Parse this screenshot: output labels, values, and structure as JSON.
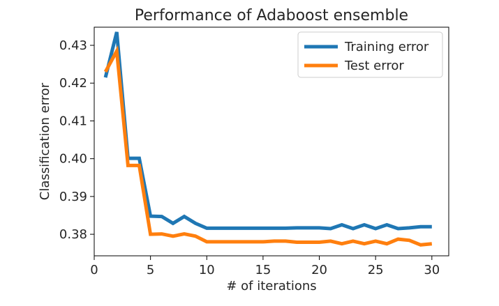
{
  "chart_data": {
    "type": "line",
    "title": "Performance of Adaboost ensemble",
    "xlabel": "# of iterations",
    "ylabel": "Classification error",
    "xlim": [
      0,
      31.5
    ],
    "ylim": [
      0.3743,
      0.4348
    ],
    "xticks": [
      "0",
      "5",
      "10",
      "15",
      "20",
      "25",
      "30"
    ],
    "yticks": [
      "0.38",
      "0.39",
      "0.40",
      "0.41",
      "0.42",
      "0.43"
    ],
    "grid": false,
    "legend_position": "top-right",
    "x": [
      1,
      2,
      3,
      4,
      5,
      6,
      7,
      8,
      9,
      10,
      11,
      12,
      13,
      14,
      15,
      16,
      17,
      18,
      19,
      20,
      21,
      22,
      23,
      24,
      25,
      26,
      27,
      28,
      29,
      30
    ],
    "series": [
      {
        "name": "Training error",
        "color": "#1f77b4",
        "values": [
          0.4215,
          0.4335,
          0.4001,
          0.4001,
          0.3848,
          0.3847,
          0.3829,
          0.3847,
          0.3829,
          0.3816,
          0.3816,
          0.3816,
          0.3816,
          0.3816,
          0.3816,
          0.3816,
          0.3816,
          0.3817,
          0.3817,
          0.3817,
          0.3815,
          0.3825,
          0.3815,
          0.3825,
          0.3815,
          0.3825,
          0.3815,
          0.3817,
          0.382,
          0.382
        ]
      },
      {
        "name": "Test error",
        "color": "#ff7f0e",
        "values": [
          0.423,
          0.4285,
          0.3982,
          0.3982,
          0.38,
          0.3801,
          0.3795,
          0.3801,
          0.3795,
          0.378,
          0.378,
          0.378,
          0.378,
          0.378,
          0.378,
          0.3782,
          0.3782,
          0.3779,
          0.3779,
          0.3779,
          0.3782,
          0.3775,
          0.3782,
          0.3775,
          0.3782,
          0.3775,
          0.3787,
          0.3784,
          0.3772,
          0.3775
        ]
      }
    ]
  }
}
